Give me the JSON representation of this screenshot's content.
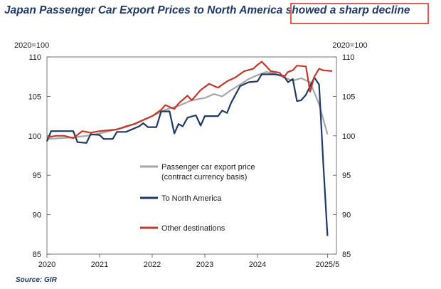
{
  "chart_data": {
    "type": "line",
    "title_main": "Japan Passenger Car Export Prices to North America",
    "title_highlight": "showed a sharp decline",
    "left_unit": "2020=100",
    "right_unit": "2020=100",
    "ylim": [
      85,
      110
    ],
    "yticks": [
      85,
      90,
      95,
      100,
      105,
      110
    ],
    "xlim": [
      2020,
      2025.5
    ],
    "xticks": [
      {
        "value": 2020,
        "label": "2020"
      },
      {
        "value": 2021,
        "label": "2021"
      },
      {
        "value": 2022,
        "label": "2022"
      },
      {
        "value": 2023,
        "label": "2023"
      },
      {
        "value": 2024,
        "label": "2024"
      },
      {
        "value": 2025.33,
        "label": "2025/5"
      }
    ],
    "series": [
      {
        "name": "Passenger car export price\n(contract currency basis)",
        "legend_lines": [
          "Passenger car export price",
          "(contract currency basis)"
        ],
        "color": "#a6a6a6",
        "points": [
          [
            2020.0,
            99.6
          ],
          [
            2020.25,
            99.7
          ],
          [
            2020.5,
            99.8
          ],
          [
            2020.75,
            100.0
          ],
          [
            2021.0,
            100.3
          ],
          [
            2021.25,
            100.7
          ],
          [
            2021.5,
            101.1
          ],
          [
            2021.75,
            101.8
          ],
          [
            2022.0,
            102.5
          ],
          [
            2022.25,
            103.3
          ],
          [
            2022.5,
            103.8
          ],
          [
            2022.75,
            104.5
          ],
          [
            2023.0,
            104.8
          ],
          [
            2023.17,
            105.3
          ],
          [
            2023.33,
            105.0
          ],
          [
            2023.5,
            105.8
          ],
          [
            2023.67,
            106.5
          ],
          [
            2023.83,
            107.2
          ],
          [
            2024.0,
            107.7
          ],
          [
            2024.17,
            108.1
          ],
          [
            2024.33,
            107.9
          ],
          [
            2024.5,
            107.4
          ],
          [
            2024.67,
            107.0
          ],
          [
            2024.83,
            107.3
          ],
          [
            2025.0,
            106.8
          ],
          [
            2025.17,
            104.0
          ],
          [
            2025.33,
            100.2
          ]
        ]
      },
      {
        "name": "To North America",
        "legend_lines": [
          "To North America"
        ],
        "color": "#1f3864",
        "points": [
          [
            2020.0,
            99.3
          ],
          [
            2020.08,
            100.6
          ],
          [
            2020.5,
            100.6
          ],
          [
            2020.58,
            99.2
          ],
          [
            2020.75,
            99.1
          ],
          [
            2020.83,
            100.2
          ],
          [
            2021.0,
            100.1
          ],
          [
            2021.08,
            99.6
          ],
          [
            2021.25,
            99.6
          ],
          [
            2021.33,
            100.5
          ],
          [
            2021.5,
            100.5
          ],
          [
            2021.75,
            101.2
          ],
          [
            2021.83,
            101.6
          ],
          [
            2021.92,
            101.1
          ],
          [
            2022.08,
            101.1
          ],
          [
            2022.17,
            103.1
          ],
          [
            2022.33,
            103.1
          ],
          [
            2022.42,
            100.3
          ],
          [
            2022.5,
            101.5
          ],
          [
            2022.58,
            101.2
          ],
          [
            2022.67,
            102.3
          ],
          [
            2022.83,
            102.6
          ],
          [
            2022.92,
            101.3
          ],
          [
            2023.0,
            102.5
          ],
          [
            2023.25,
            102.5
          ],
          [
            2023.33,
            103.2
          ],
          [
            2023.42,
            102.9
          ],
          [
            2023.5,
            104.2
          ],
          [
            2023.67,
            106.3
          ],
          [
            2023.83,
            106.8
          ],
          [
            2024.0,
            106.9
          ],
          [
            2024.08,
            107.8
          ],
          [
            2024.33,
            107.8
          ],
          [
            2024.5,
            107.6
          ],
          [
            2024.58,
            106.8
          ],
          [
            2024.67,
            107.2
          ],
          [
            2024.75,
            104.4
          ],
          [
            2024.83,
            104.5
          ],
          [
            2024.92,
            105.2
          ],
          [
            2025.0,
            106.3
          ],
          [
            2025.08,
            107.4
          ],
          [
            2025.17,
            106.5
          ],
          [
            2025.25,
            96.5
          ],
          [
            2025.33,
            87.3
          ]
        ]
      },
      {
        "name": "Other destinations",
        "legend_lines": [
          "Other destinations"
        ],
        "color": "#c0392b",
        "points": [
          [
            2020.0,
            99.8
          ],
          [
            2020.17,
            100.0
          ],
          [
            2020.33,
            100.0
          ],
          [
            2020.5,
            99.7
          ],
          [
            2020.67,
            100.6
          ],
          [
            2020.83,
            100.4
          ],
          [
            2021.0,
            100.6
          ],
          [
            2021.17,
            100.7
          ],
          [
            2021.33,
            100.8
          ],
          [
            2021.5,
            101.2
          ],
          [
            2021.67,
            101.5
          ],
          [
            2021.83,
            102.0
          ],
          [
            2022.0,
            102.5
          ],
          [
            2022.17,
            103.3
          ],
          [
            2022.25,
            103.9
          ],
          [
            2022.42,
            103.4
          ],
          [
            2022.5,
            104.1
          ],
          [
            2022.67,
            105.1
          ],
          [
            2022.75,
            104.5
          ],
          [
            2022.92,
            105.8
          ],
          [
            2023.0,
            106.2
          ],
          [
            2023.08,
            106.6
          ],
          [
            2023.25,
            106.1
          ],
          [
            2023.42,
            106.9
          ],
          [
            2023.58,
            107.4
          ],
          [
            2023.75,
            108.2
          ],
          [
            2023.92,
            108.5
          ],
          [
            2024.0,
            109.0
          ],
          [
            2024.08,
            109.4
          ],
          [
            2024.17,
            108.8
          ],
          [
            2024.25,
            108.2
          ],
          [
            2024.42,
            108.0
          ],
          [
            2024.5,
            107.4
          ],
          [
            2024.58,
            108.1
          ],
          [
            2024.67,
            108.3
          ],
          [
            2024.75,
            108.9
          ],
          [
            2024.92,
            108.8
          ],
          [
            2025.0,
            105.6
          ],
          [
            2025.08,
            107.5
          ],
          [
            2025.17,
            108.5
          ],
          [
            2025.25,
            108.3
          ],
          [
            2025.42,
            108.2
          ]
        ]
      }
    ],
    "source": "Source: GIR"
  }
}
